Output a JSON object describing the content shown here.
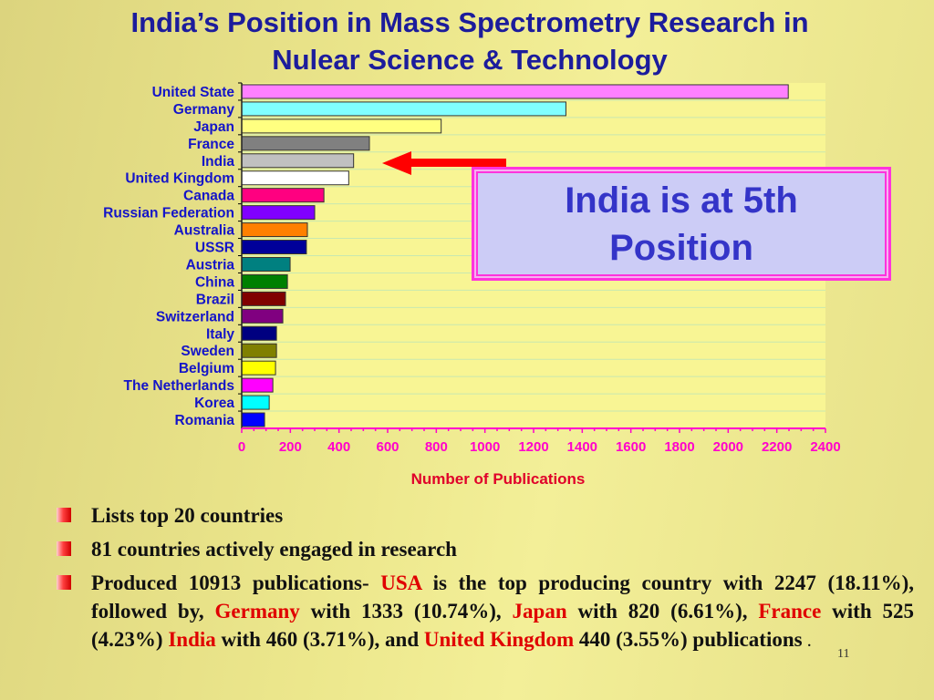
{
  "title": {
    "line1": "India’s Position in Mass Spectrometry Research in",
    "line2": "Nulear Science & Technology"
  },
  "chart_data": {
    "type": "bar",
    "orientation": "horizontal",
    "categories": [
      "United State",
      "Germany",
      "Japan",
      "France",
      "India",
      "United Kingdom",
      "Canada",
      "Russian Federation",
      "Australia",
      "USSR",
      "Austria",
      "China",
      "Brazil",
      "Switzerland",
      "Italy",
      "Sweden",
      "Belgium",
      "The Netherlands",
      "Korea",
      "Romania"
    ],
    "values": [
      2247,
      1333,
      820,
      525,
      460,
      440,
      338,
      300,
      270,
      266,
      199,
      188,
      180,
      169,
      143,
      143,
      139,
      128,
      113,
      94
    ],
    "colors": [
      "#ff80ff",
      "#80ffff",
      "#ffff80",
      "#808080",
      "#c0c0c0",
      "#ffffff",
      "#ff0080",
      "#8000ff",
      "#ff8000",
      "#000099",
      "#008080",
      "#008000",
      "#800000",
      "#800080",
      "#000080",
      "#808000",
      "#ffff00",
      "#ff00ff",
      "#00ffff",
      "#0000ff"
    ],
    "xlabel": "Number of Publications",
    "xlim": [
      0,
      2400
    ],
    "xticks": [
      0,
      200,
      400,
      600,
      800,
      1000,
      1200,
      1400,
      1600,
      1800,
      2000,
      2200,
      2400
    ],
    "grid": true,
    "highlight": "India"
  },
  "callout": {
    "line1": "India is at 5th",
    "line2": "Position"
  },
  "bullets": [
    {
      "segments": [
        {
          "text": "Lists top 20 countries",
          "hl": false
        }
      ]
    },
    {
      "segments": [
        {
          "text": "81 countries  actively engaged in  research",
          "hl": false
        }
      ]
    },
    {
      "segments": [
        {
          "text": "Produced 10913 publications- ",
          "hl": false
        },
        {
          "text": "USA",
          "hl": true
        },
        {
          "text": " is the top producing country with 2247 (18.11%), followed by, ",
          "hl": false
        },
        {
          "text": "Germany",
          "hl": true
        },
        {
          "text": " with 1333 (10.74%), ",
          "hl": false
        },
        {
          "text": "Japan",
          "hl": true
        },
        {
          "text": " with 820 (6.61%), ",
          "hl": false
        },
        {
          "text": "France",
          "hl": true
        },
        {
          "text": " with 525 (4.23%) ",
          "hl": false
        },
        {
          "text": "India",
          "hl": true
        },
        {
          "text": " with 460 (3.71%), and ",
          "hl": false
        },
        {
          "text": "United Kingdom",
          "hl": true
        },
        {
          "text": " 440 (3.55%) publications ",
          "hl": false
        },
        {
          "text": ".",
          "hl": false
        }
      ]
    }
  ],
  "page_number": "11"
}
